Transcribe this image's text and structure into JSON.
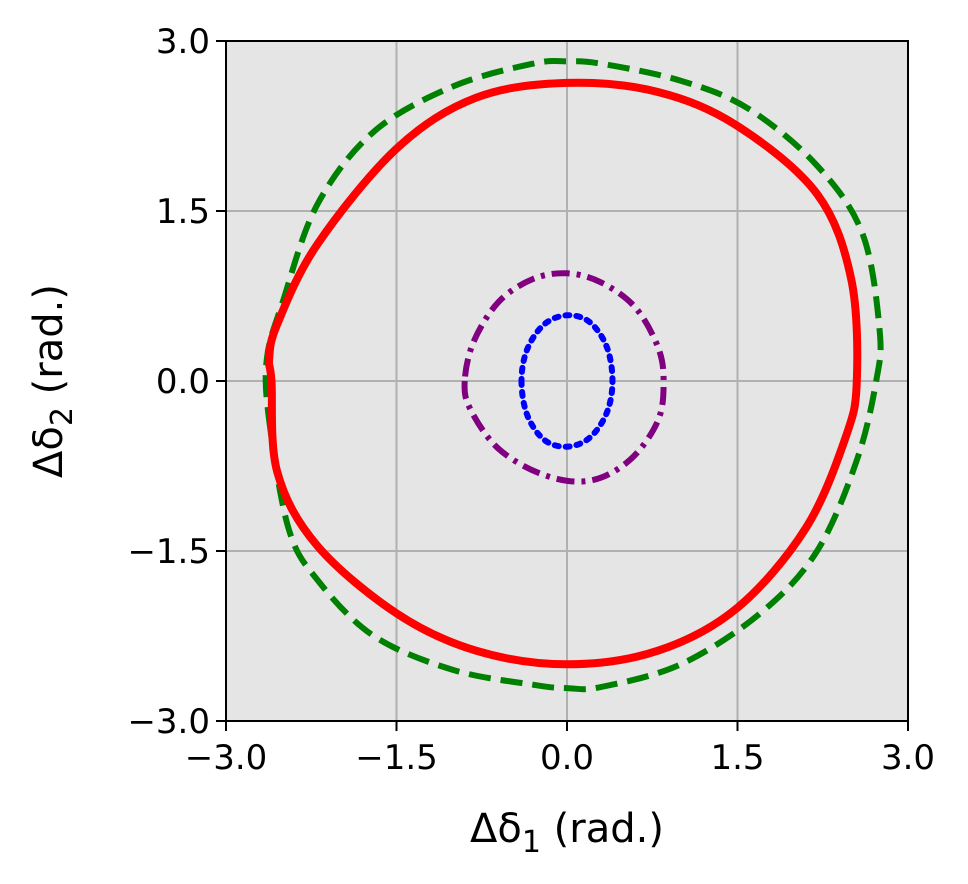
{
  "chart_data": {
    "type": "line",
    "title": "",
    "xlabel": {
      "prefix": "Δδ",
      "sub": "1",
      "suffix": " (rad.)"
    },
    "ylabel": {
      "prefix": "Δδ",
      "sub": "2",
      "suffix": " (rad.)"
    },
    "xlim": [
      -3.0,
      3.0
    ],
    "ylim": [
      -3.0,
      3.0
    ],
    "xticks": [
      -3.0,
      -1.5,
      0.0,
      1.5,
      3.0
    ],
    "yticks": [
      -3.0,
      -1.5,
      0.0,
      1.5,
      3.0
    ],
    "xtick_labels": [
      "−3.0",
      "−1.5",
      "0.0",
      "1.5",
      "3.0"
    ],
    "ytick_labels": [
      "−3.0",
      "−1.5",
      "0.0",
      "1.5",
      "3.0"
    ],
    "grid": true,
    "background_color": "#e5e5e5",
    "series": [
      {
        "color": "#008000",
        "style": "dashed",
        "closed": true,
        "x": [
          -2.62,
          -2.45,
          -2.2,
          -1.7,
          -1.0,
          -0.3,
          0.0,
          0.3,
          1.0,
          1.7,
          2.2,
          2.55,
          2.72,
          2.75,
          2.6,
          2.2,
          1.6,
          1.0,
          0.3,
          0.0,
          -0.3,
          -1.0,
          -1.7,
          -2.2,
          -2.5,
          -2.64
        ],
        "y": [
          -0.35,
          -1.3,
          -1.75,
          -2.25,
          -2.55,
          -2.68,
          -2.71,
          -2.7,
          -2.5,
          -2.05,
          -1.5,
          -0.7,
          0.0,
          0.45,
          1.3,
          1.9,
          2.4,
          2.65,
          2.8,
          2.82,
          2.8,
          2.6,
          2.2,
          1.55,
          0.7,
          0.2
        ]
      },
      {
        "color": "#ff0000",
        "style": "solid",
        "closed": true,
        "x": [
          -2.6,
          -2.55,
          -2.2,
          -1.5,
          -0.8,
          0.0,
          0.8,
          1.5,
          2.1,
          2.45,
          2.55,
          2.5,
          2.2,
          1.5,
          0.8,
          0.0,
          -0.8,
          -1.5,
          -2.2,
          -2.55,
          -2.62
        ],
        "y": [
          0.0,
          -0.8,
          -1.45,
          -2.05,
          -2.38,
          -2.5,
          -2.38,
          -2.0,
          -1.3,
          -0.5,
          0.0,
          0.9,
          1.65,
          2.25,
          2.55,
          2.63,
          2.5,
          2.05,
          1.2,
          0.5,
          0.2
        ]
      },
      {
        "color": "#800080",
        "style": "dashdot",
        "closed": true,
        "x": [
          -0.9,
          -0.85,
          -0.6,
          -0.2,
          0.2,
          0.55,
          0.8,
          0.85,
          0.8,
          0.6,
          0.3,
          0.0,
          -0.3,
          -0.6,
          -0.82
        ],
        "y": [
          0.0,
          -0.25,
          -0.6,
          -0.83,
          -0.88,
          -0.7,
          -0.35,
          0.0,
          0.3,
          0.65,
          0.87,
          0.95,
          0.9,
          0.7,
          0.35
        ]
      },
      {
        "color": "#0000ff",
        "style": "dotted",
        "closed": true,
        "x": [
          -0.4,
          -0.35,
          -0.2,
          0.0,
          0.2,
          0.35,
          0.4,
          0.35,
          0.2,
          0.0,
          -0.2,
          -0.35
        ],
        "y": [
          0.0,
          -0.3,
          -0.52,
          -0.58,
          -0.5,
          -0.28,
          0.0,
          0.3,
          0.52,
          0.58,
          0.5,
          0.28
        ]
      }
    ]
  }
}
